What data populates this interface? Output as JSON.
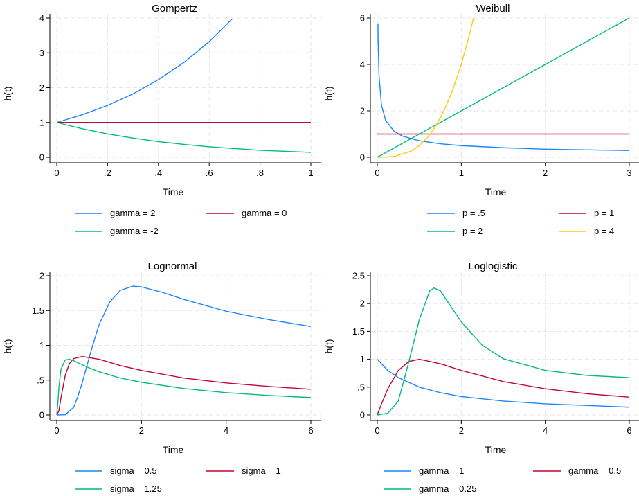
{
  "chart_data": [
    {
      "type": "line",
      "title": "Gompertz",
      "xlabel": "Time",
      "ylabel": "h(t)",
      "xlim": [
        0,
        1
      ],
      "ylim": [
        0,
        4
      ],
      "xticks": [
        0,
        0.2,
        0.4,
        0.6,
        0.8,
        1
      ],
      "xtick_labels": [
        "0",
        ".2",
        ".4",
        ".6",
        ".8",
        "1"
      ],
      "yticks": [
        0,
        1,
        2,
        3,
        4
      ],
      "ytick_labels": [
        "0",
        "1",
        "2",
        "3",
        "4"
      ],
      "grid": true,
      "legend_position": "bottom",
      "series": [
        {
          "name": "gamma = 2",
          "color": "#1a85ff",
          "x": [
            0,
            0.1,
            0.2,
            0.3,
            0.4,
            0.5,
            0.6,
            0.69
          ],
          "y": [
            1,
            1.22,
            1.49,
            1.82,
            2.23,
            2.72,
            3.32,
            3.97
          ]
        },
        {
          "name": "gamma = 0",
          "color": "#c10534",
          "x": [
            0,
            1
          ],
          "y": [
            1,
            1
          ]
        },
        {
          "name": "gamma = -2",
          "color": "#00bb78",
          "x": [
            0,
            0.1,
            0.2,
            0.3,
            0.4,
            0.5,
            0.6,
            0.7,
            0.8,
            0.9,
            1
          ],
          "y": [
            1,
            0.82,
            0.67,
            0.55,
            0.45,
            0.37,
            0.3,
            0.25,
            0.2,
            0.17,
            0.14
          ]
        }
      ]
    },
    {
      "type": "line",
      "title": "Weibull",
      "xlabel": "Time",
      "ylabel": "h(t)",
      "xlim": [
        0,
        3
      ],
      "ylim": [
        0,
        6
      ],
      "xticks": [
        0,
        1,
        2,
        3
      ],
      "xtick_labels": [
        "0",
        "1",
        "2",
        "3"
      ],
      "yticks": [
        0,
        2,
        4,
        6
      ],
      "ytick_labels": [
        "0",
        "2",
        "4",
        "6"
      ],
      "grid": true,
      "legend_position": "bottom",
      "series": [
        {
          "name": "p = .5",
          "color": "#1a85ff",
          "x": [
            0.0075,
            0.01,
            0.02,
            0.05,
            0.1,
            0.2,
            0.3,
            0.5,
            0.75,
            1,
            1.5,
            2,
            2.5,
            3
          ],
          "y": [
            5.77,
            5,
            3.54,
            2.24,
            1.58,
            1.12,
            0.91,
            0.71,
            0.58,
            0.5,
            0.41,
            0.35,
            0.32,
            0.29
          ]
        },
        {
          "name": "p = 1",
          "color": "#c10534",
          "x": [
            0,
            3
          ],
          "y": [
            1,
            1
          ]
        },
        {
          "name": "p = 2",
          "color": "#00bb78",
          "x": [
            0,
            3
          ],
          "y": [
            0,
            6
          ]
        },
        {
          "name": "p = 4",
          "color": "#ffc90e",
          "x": [
            0,
            0.2,
            0.4,
            0.5,
            0.6,
            0.7,
            0.8,
            0.9,
            1,
            1.1,
            1.145
          ],
          "y": [
            0,
            0.03,
            0.26,
            0.5,
            0.86,
            1.37,
            2.05,
            2.92,
            4,
            5.32,
            6
          ]
        }
      ]
    },
    {
      "type": "line",
      "title": "Lognormal",
      "xlabel": "Time",
      "ylabel": "h(t)",
      "xlim": [
        0,
        6
      ],
      "ylim": [
        0,
        2
      ],
      "xticks": [
        0,
        2,
        4,
        6
      ],
      "xtick_labels": [
        "0",
        "2",
        "4",
        "6"
      ],
      "yticks": [
        0,
        0.5,
        1,
        1.5,
        2
      ],
      "ytick_labels": [
        "0",
        ".5",
        "1",
        "1.5",
        "2"
      ],
      "grid": true,
      "legend_position": "bottom",
      "series": [
        {
          "name": "sigma = 0.5",
          "color": "#1a85ff",
          "x": [
            0,
            0.2,
            0.4,
            0.5,
            0.6,
            0.8,
            1,
            1.25,
            1.5,
            1.8,
            2,
            2.5,
            3,
            4,
            5,
            6
          ],
          "y": [
            0,
            0.003,
            0.11,
            0.27,
            0.46,
            0.9,
            1.3,
            1.62,
            1.79,
            1.85,
            1.84,
            1.76,
            1.66,
            1.49,
            1.37,
            1.27
          ]
        },
        {
          "name": "sigma = 1",
          "color": "#c10534",
          "x": [
            0,
            0.05,
            0.1,
            0.2,
            0.3,
            0.4,
            0.6,
            0.8,
            1,
            1.5,
            2,
            3,
            4,
            5,
            6
          ],
          "y": [
            0,
            0.06,
            0.25,
            0.57,
            0.74,
            0.81,
            0.84,
            0.82,
            0.8,
            0.71,
            0.64,
            0.53,
            0.46,
            0.41,
            0.37
          ]
        },
        {
          "name": "sigma = 1.25",
          "color": "#00bb78",
          "x": [
            0,
            0.03,
            0.05,
            0.1,
            0.2,
            0.3,
            0.4,
            0.5,
            0.75,
            1,
            1.5,
            2,
            3,
            4,
            5,
            6
          ],
          "y": [
            0,
            0.2,
            0.39,
            0.66,
            0.79,
            0.8,
            0.78,
            0.75,
            0.68,
            0.62,
            0.53,
            0.47,
            0.38,
            0.32,
            0.28,
            0.25
          ]
        }
      ]
    },
    {
      "type": "line",
      "title": "Loglogistic",
      "xlabel": "Time",
      "ylabel": "h(t)",
      "xlim": [
        0,
        6
      ],
      "ylim": [
        0,
        2.5
      ],
      "xticks": [
        0,
        2,
        4,
        6
      ],
      "xtick_labels": [
        "0",
        "2",
        "4",
        "6"
      ],
      "yticks": [
        0,
        0.5,
        1,
        1.5,
        2,
        2.5
      ],
      "ytick_labels": [
        "0",
        ".5",
        "1",
        "1.5",
        "2",
        "2.5"
      ],
      "grid": true,
      "legend_position": "bottom",
      "series": [
        {
          "name": "gamma = 1",
          "color": "#1a85ff",
          "x": [
            0,
            0.25,
            0.5,
            1,
            1.5,
            2,
            3,
            4,
            5,
            6
          ],
          "y": [
            1,
            0.8,
            0.67,
            0.5,
            0.4,
            0.33,
            0.25,
            0.2,
            0.17,
            0.14
          ]
        },
        {
          "name": "gamma = 0.5",
          "color": "#c10534",
          "x": [
            0,
            0.1,
            0.25,
            0.5,
            0.75,
            1,
            1.5,
            2,
            3,
            4,
            5,
            6
          ],
          "y": [
            0,
            0.2,
            0.47,
            0.8,
            0.96,
            1,
            0.92,
            0.8,
            0.6,
            0.47,
            0.38,
            0.32
          ]
        },
        {
          "name": "gamma = 0.25",
          "color": "#00bb78",
          "x": [
            0,
            0.25,
            0.5,
            0.75,
            1,
            1.25,
            1.35,
            1.5,
            2,
            2.5,
            3,
            4,
            5,
            6
          ],
          "y": [
            0,
            0.03,
            0.25,
            0.95,
            1.71,
            2.23,
            2.28,
            2.23,
            1.67,
            1.25,
            1.01,
            0.8,
            0.71,
            0.67
          ]
        }
      ]
    }
  ]
}
